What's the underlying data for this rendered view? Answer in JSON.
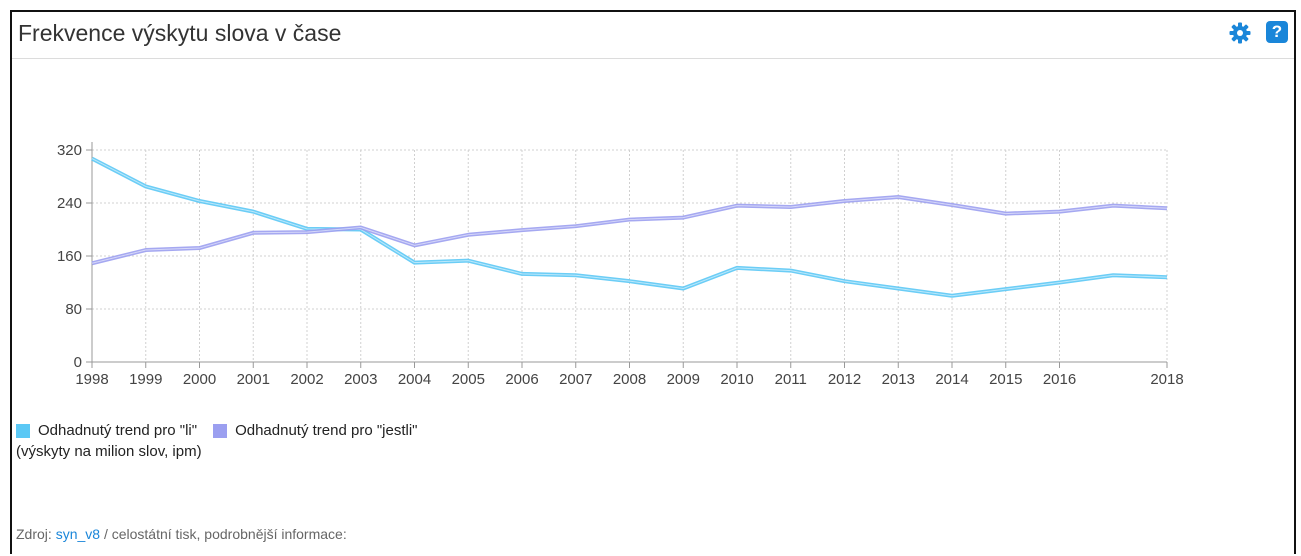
{
  "header": {
    "title": "Frekvence výskytu slova v čase",
    "settings_icon": "gear-icon",
    "help_icon": "question-icon",
    "help_glyph": "?"
  },
  "chart_data": {
    "type": "line",
    "x": [
      1998,
      1999,
      2000,
      2001,
      2002,
      2003,
      2004,
      2005,
      2006,
      2007,
      2008,
      2009,
      2010,
      2011,
      2012,
      2013,
      2014,
      2015,
      2016,
      2017,
      2018
    ],
    "xticks": [
      "1998",
      "1999",
      "2000",
      "2001",
      "2002",
      "2003",
      "2004",
      "2005",
      "2006",
      "2007",
      "2008",
      "2009",
      "2010",
      "2011",
      "2012",
      "2013",
      "2014",
      "2015",
      "2016",
      "2018"
    ],
    "xlim": [
      1998,
      2018
    ],
    "yticks": [
      "0",
      "80",
      "160",
      "240",
      "320"
    ],
    "ylim": [
      0,
      320
    ],
    "grid": true,
    "series": [
      {
        "name": "Odhadnutý trend pro \"li\"",
        "color": "#5bc8f5",
        "values": [
          307,
          265,
          243,
          227,
          201,
          200,
          150,
          153,
          133,
          131,
          122,
          111,
          142,
          138,
          122,
          111,
          100,
          110,
          120,
          131,
          128
        ]
      },
      {
        "name": "Odhadnutý trend pro \"jestli\"",
        "color": "#9b9ff0",
        "values": [
          149,
          169,
          172,
          195,
          196,
          203,
          176,
          192,
          199,
          205,
          215,
          218,
          236,
          234,
          243,
          249,
          237,
          224,
          227,
          236,
          232
        ]
      }
    ],
    "unit_label": "(výskyty na milion slov, ipm)"
  },
  "source": {
    "prefix": "Zdroj:",
    "link_text": "syn_v8",
    "suffix": "/ celostátní tisk, podrobnější informace:"
  }
}
